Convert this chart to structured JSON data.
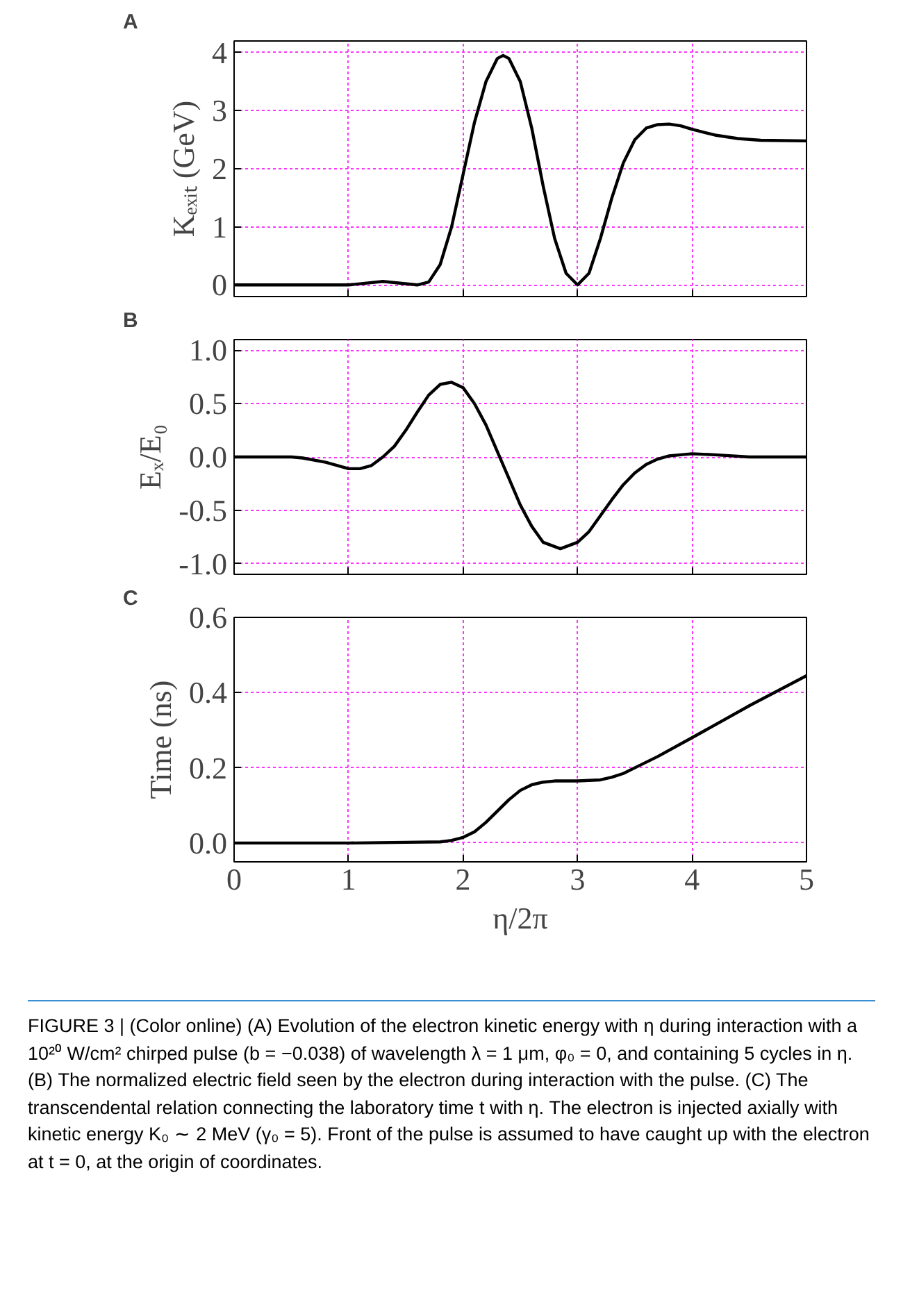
{
  "chart_data": [
    {
      "type": "line",
      "title": "A",
      "ylabel": "Kₑₓᵢₜ (GeV)",
      "xlim": [
        0,
        5
      ],
      "ylim": [
        -0.2,
        4.2
      ],
      "xticks": [
        {
          "value": 0,
          "label": null
        },
        {
          "value": 1,
          "label": null
        },
        {
          "value": 2,
          "label": null
        },
        {
          "value": 3,
          "label": null
        },
        {
          "value": 4,
          "label": null
        },
        {
          "value": 5,
          "label": null
        }
      ],
      "yticks": [
        0,
        1,
        2,
        3,
        4
      ],
      "tick_labels": "y",
      "grid": true,
      "line_style": "solid",
      "series": [
        {
          "color": "#000000",
          "x": [
            0,
            1,
            1.1,
            1.3,
            1.45,
            1.6,
            1.7,
            1.8,
            1.9,
            2.0,
            2.1,
            2.2,
            2.3,
            2.35,
            2.4,
            2.5,
            2.6,
            2.7,
            2.8,
            2.9,
            3.0,
            3.1,
            3.2,
            3.3,
            3.4,
            3.5,
            3.6,
            3.7,
            3.8,
            3.9,
            4.0,
            4.2,
            4.4,
            4.6,
            5
          ],
          "values": [
            0,
            0,
            0.02,
            0.06,
            0.03,
            0,
            0.05,
            0.35,
            1.0,
            1.9,
            2.8,
            3.5,
            3.9,
            3.95,
            3.9,
            3.5,
            2.7,
            1.7,
            0.8,
            0.2,
            0,
            0.2,
            0.8,
            1.5,
            2.1,
            2.5,
            2.7,
            2.76,
            2.77,
            2.74,
            2.68,
            2.58,
            2.52,
            2.49,
            2.48
          ]
        }
      ]
    },
    {
      "type": "line",
      "title": "B",
      "ylabel": "Eₓ/E₀",
      "xlim": [
        0,
        5
      ],
      "ylim": [
        -1.1,
        1.1
      ],
      "xticks": [
        {
          "value": 0,
          "label": null
        },
        {
          "value": 1,
          "label": null
        },
        {
          "value": 2,
          "label": null
        },
        {
          "value": 3,
          "label": null
        },
        {
          "value": 4,
          "label": null
        },
        {
          "value": 5,
          "label": null
        }
      ],
      "yticks": [
        {
          "value": -1,
          "label": "-1.0"
        },
        {
          "value": -0.5,
          "label": "-0.5"
        },
        {
          "value": 0,
          "label": "0.0"
        },
        {
          "value": 0.5,
          "label": "0.5"
        },
        {
          "value": 1,
          "label": "1.0"
        }
      ],
      "tick_labels": "y",
      "grid": true,
      "line_style": "solid",
      "series": [
        {
          "color": "#000000",
          "x": [
            0,
            0.5,
            0.6,
            0.8,
            1.0,
            1.1,
            1.2,
            1.3,
            1.4,
            1.5,
            1.6,
            1.7,
            1.8,
            1.9,
            2.0,
            2.1,
            2.2,
            2.3,
            2.4,
            2.5,
            2.6,
            2.7,
            2.85,
            3.0,
            3.1,
            3.2,
            3.3,
            3.4,
            3.5,
            3.6,
            3.7,
            3.8,
            3.9,
            4.0,
            4.2,
            4.5,
            5
          ],
          "values": [
            0,
            0,
            -0.01,
            -0.05,
            -0.11,
            -0.11,
            -0.08,
            0,
            0.1,
            0.25,
            0.42,
            0.58,
            0.68,
            0.7,
            0.65,
            0.5,
            0.3,
            0.05,
            -0.2,
            -0.45,
            -0.65,
            -0.8,
            -0.86,
            -0.8,
            -0.7,
            -0.55,
            -0.4,
            -0.26,
            -0.15,
            -0.07,
            -0.02,
            0.01,
            0.02,
            0.03,
            0.02,
            0,
            0
          ]
        }
      ]
    },
    {
      "type": "line",
      "title": "C",
      "ylabel": "Time (ns)",
      "xlabel": "η/2π",
      "xlim": [
        0,
        5
      ],
      "ylim": [
        -0.05,
        0.6
      ],
      "xticks": [
        0,
        1,
        2,
        3,
        4,
        5
      ],
      "yticks": [
        {
          "value": 0,
          "label": "0.0"
        },
        {
          "value": 0.2,
          "label": "0.2"
        },
        {
          "value": 0.4,
          "label": "0.4"
        },
        {
          "value": 0.6,
          "label": "0.6"
        }
      ],
      "grid": true,
      "line_style": "solid",
      "series": [
        {
          "color": "#000000",
          "x": [
            0,
            1,
            1.5,
            1.8,
            1.9,
            2.0,
            2.1,
            2.2,
            2.3,
            2.4,
            2.5,
            2.6,
            2.7,
            2.8,
            3.0,
            3.2,
            3.3,
            3.4,
            3.5,
            3.7,
            4.0,
            4.5,
            5
          ],
          "values": [
            0,
            0,
            0.002,
            0.003,
            0.007,
            0.015,
            0.03,
            0.055,
            0.085,
            0.115,
            0.14,
            0.155,
            0.162,
            0.165,
            0.165,
            0.168,
            0.175,
            0.185,
            0.2,
            0.23,
            0.28,
            0.365,
            0.445
          ]
        }
      ],
      "annotations": [
        "FIGURE 3 | (Color online) (A) Evolution of the electron kinetic energy with η during interaction with a 10²⁰ W/cm² chirped pulse (b = −0.038) of wavelength λ = 1 μm, φ₀ = 0, and containing 5 cycles in η. (B) The normalized electric field seen by the electron during interaction with the pulse. (C) The transcendental relation connecting the laboratory time t with η. The electron is injected axially with kinetic energy K₀ ∼ 2 MeV (γ₀ = 5). Front of the pulse is assumed to have caught up with the electron at t = 0, at the origin of coordinates."
      ]
    }
  ]
}
